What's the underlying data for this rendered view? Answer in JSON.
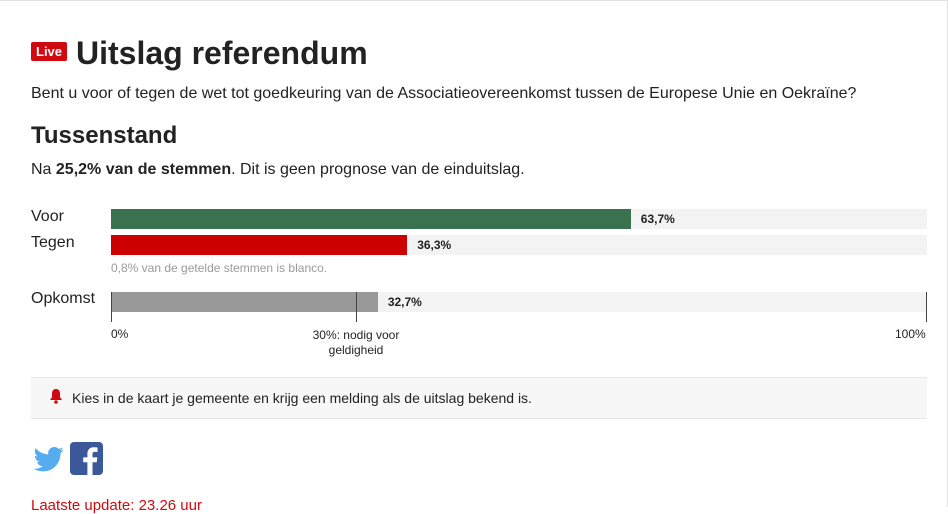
{
  "header": {
    "live_badge": "Live",
    "title": "Uitslag referendum"
  },
  "question": "Bent u voor of tegen de wet tot goedkeuring van de Associatieovereenkomst tussen de Europese Unie en Oekraïne?",
  "section_title": "Tussenstand",
  "subline": {
    "prefix": "Na ",
    "bold": "25,2% van de stemmen",
    "suffix": ". Dit is geen prognose van de einduitslag."
  },
  "blank_note": "0,8% van de getelde stemmen is blanco.",
  "notice": {
    "icon": "bell-icon",
    "text": "Kies in de kaart je gemeente en krijg een melding als de uitslag bekend is."
  },
  "share": {
    "twitter_icon": "twitter-icon",
    "facebook_icon": "facebook-icon"
  },
  "last_update": "Laatste update: 23.26 uur",
  "chart_data": {
    "type": "bar",
    "orientation": "horizontal",
    "categories": [
      "Voor",
      "Tegen",
      "Opkomst"
    ],
    "values": [
      63.7,
      36.3,
      32.7
    ],
    "value_labels": [
      "63,7%",
      "36,3%",
      "32,7%"
    ],
    "colors": [
      "#3a7250",
      "#cc0000",
      "#999999"
    ],
    "xlim": [
      0,
      100
    ],
    "x_ticks": [
      {
        "value": 0,
        "label": "0%"
      },
      {
        "value": 100,
        "label": "100%"
      }
    ],
    "threshold": {
      "value": 30,
      "label_line1": "30%: nodig voor",
      "label_line2": "geldigheid"
    },
    "track_color": "#f3f3f3"
  }
}
